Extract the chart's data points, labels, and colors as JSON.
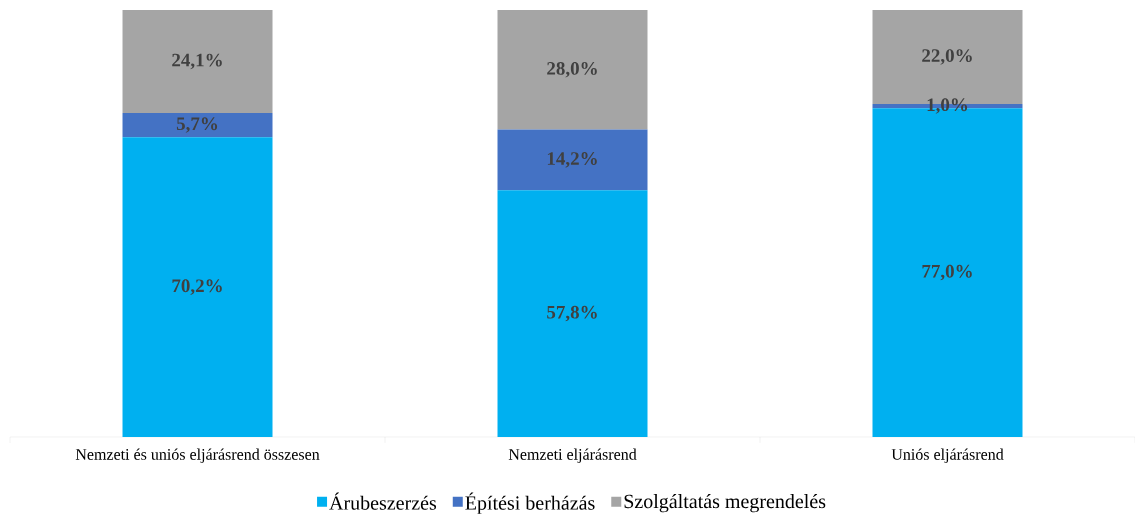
{
  "chart_data": {
    "type": "bar",
    "stacked": true,
    "legend": "bottom",
    "categories": [
      "Nemzeti és uniós eljárásrend összesen",
      "Nemzeti eljárásrend",
      "Uniós eljárásrend"
    ],
    "series": [
      {
        "name": "Árubeszerzés",
        "color": "#00b0f0",
        "values": [
          70.2,
          57.8,
          77.0
        ],
        "value_labels": [
          "70,2%",
          "57,8%",
          "77,0%"
        ]
      },
      {
        "name": "Építési berházás",
        "color": "#4472c4",
        "values": [
          5.7,
          14.2,
          1.0
        ],
        "value_labels": [
          "5,7%",
          "14,2%",
          "1,0%"
        ]
      },
      {
        "name": "Szolgáltatás megrendelés",
        "color": "#a5a5a5",
        "values": [
          24.1,
          28.0,
          22.0
        ],
        "value_labels": [
          "24,1%",
          "28,0%",
          "22,0%"
        ]
      }
    ]
  }
}
